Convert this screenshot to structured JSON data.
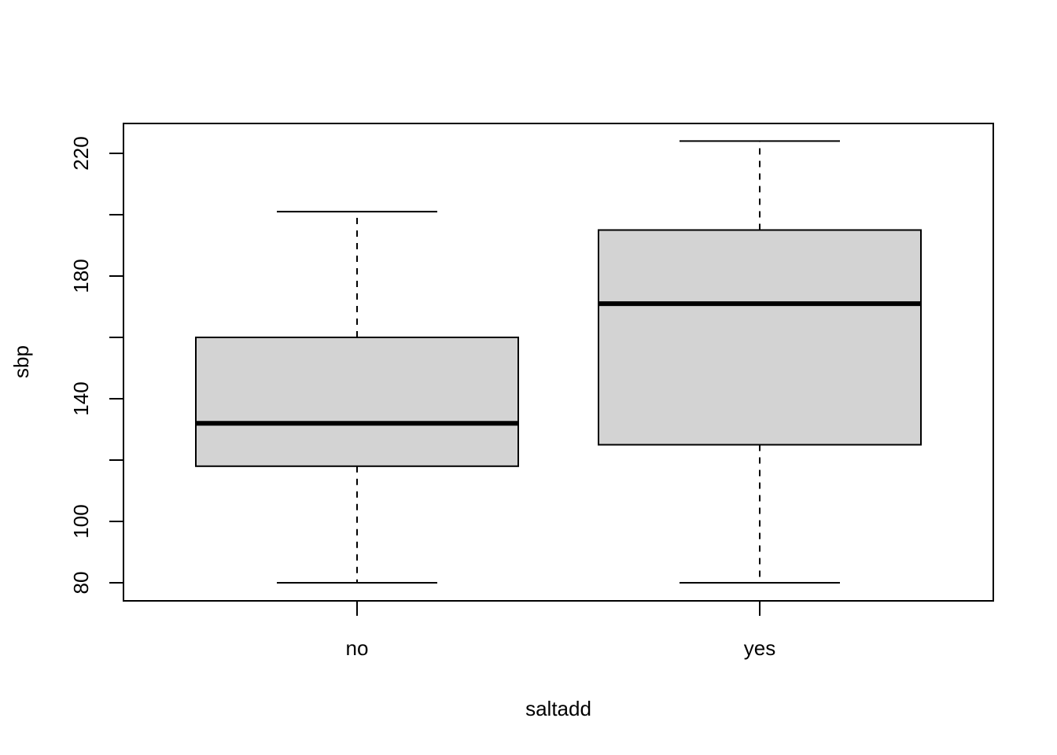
{
  "chart_data": {
    "type": "boxplot",
    "title": "",
    "xlabel": "saltadd",
    "ylabel": "sbp",
    "ylim": [
      74,
      230
    ],
    "yticks": [
      80,
      100,
      140,
      180,
      220
    ],
    "yminor_ticks": [
      120,
      160,
      200
    ],
    "categories": [
      "no",
      "yes"
    ],
    "boxes": [
      {
        "category": "no",
        "whisker_low": 80,
        "q1": 118,
        "median": 132,
        "q3": 160,
        "whisker_high": 201
      },
      {
        "category": "yes",
        "whisker_low": 80,
        "q1": 125,
        "median": 171,
        "q3": 195,
        "whisker_high": 224
      }
    ],
    "box_fill": "#d3d3d3",
    "line_color": "#000000",
    "grid": false,
    "legend": "none"
  }
}
